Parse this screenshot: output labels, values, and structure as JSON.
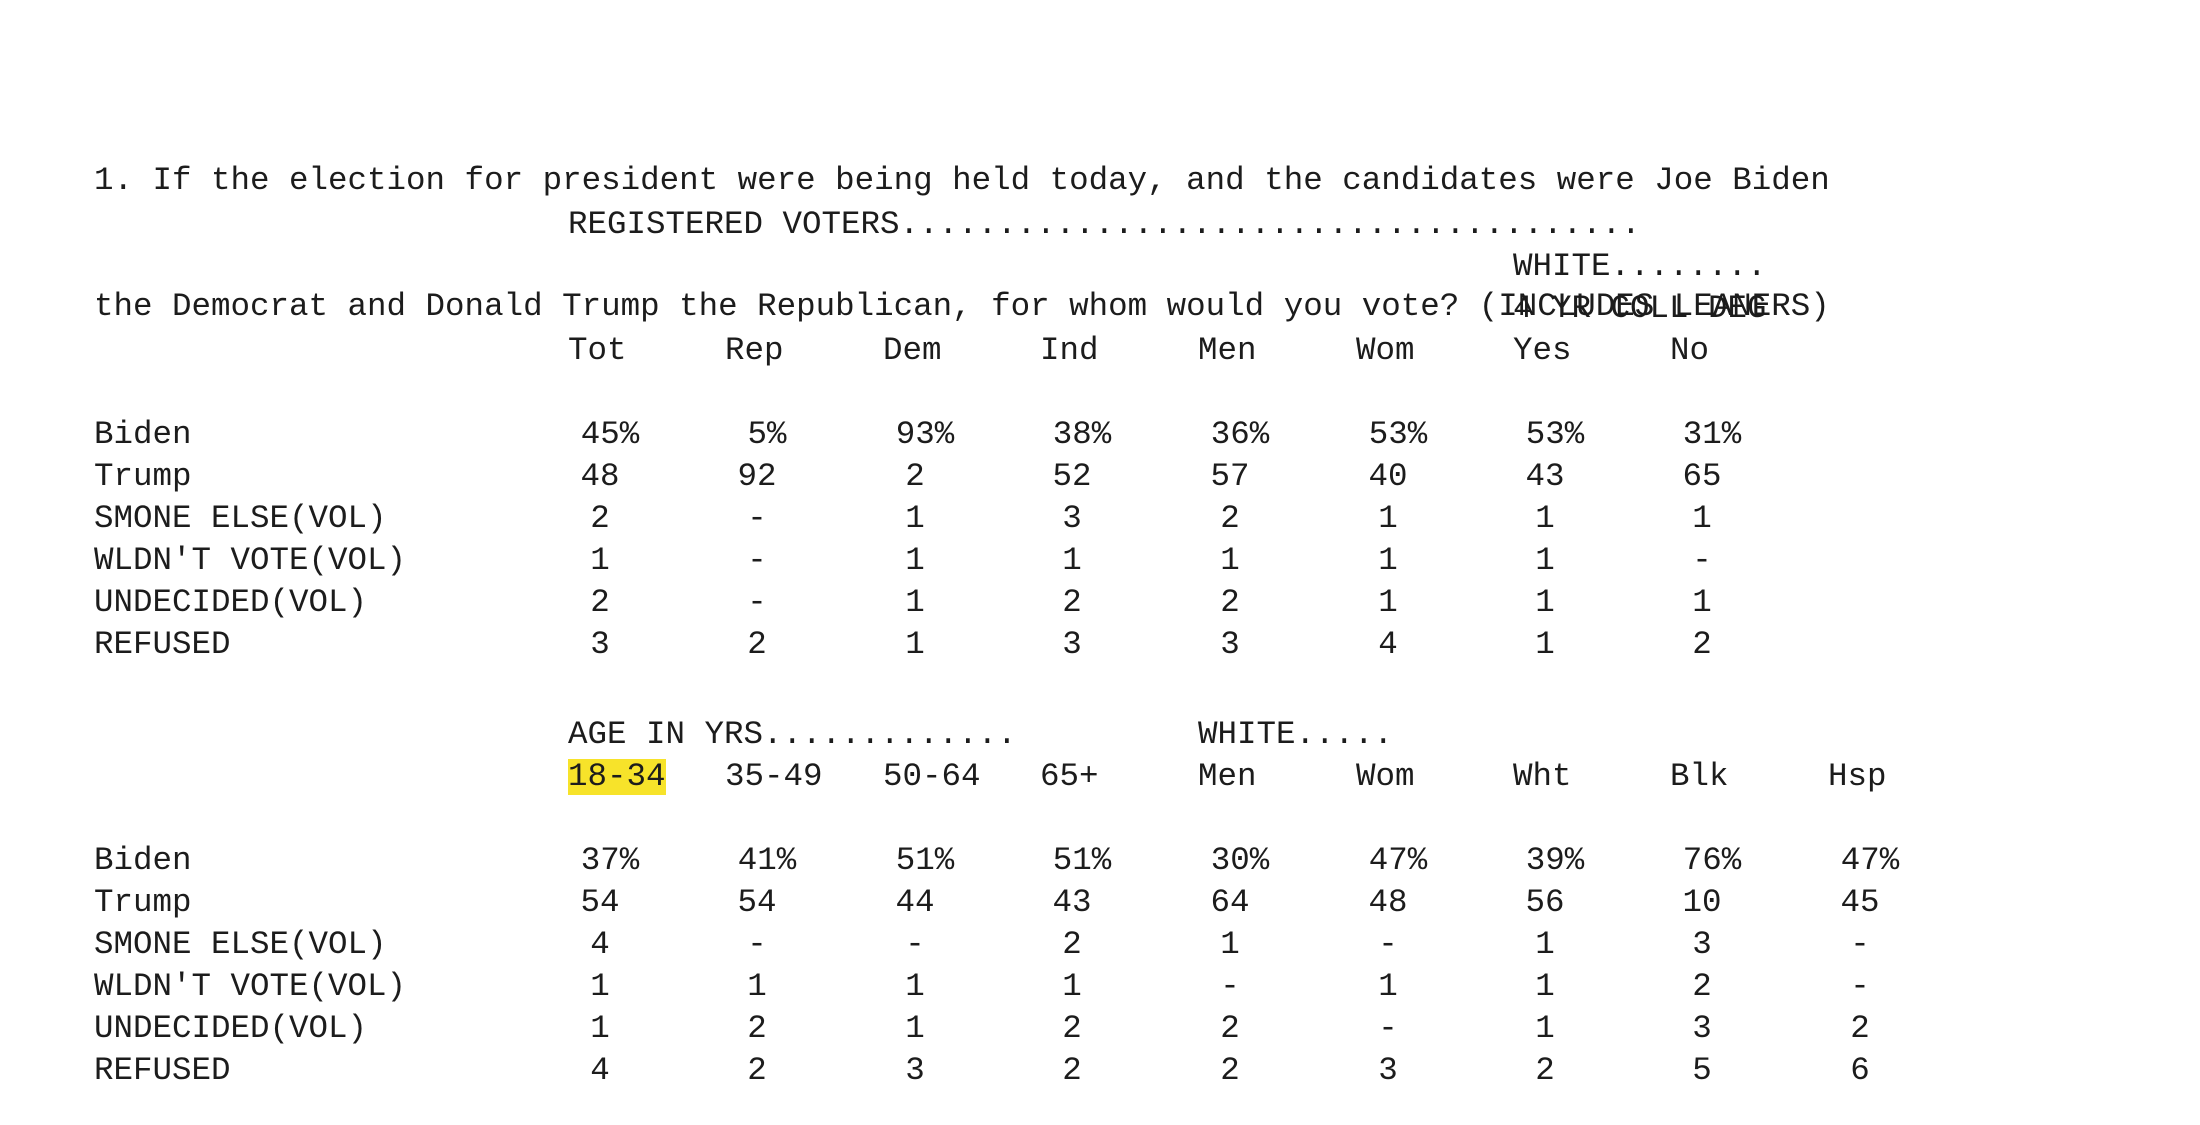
{
  "question": {
    "line1": "1. If the election for president were being held today, and the candidates were Joe Biden",
    "line2": "the Democrat and Donald Trump the Republican, for whom would you vote? (INCLUDES LEANERS)"
  },
  "table1": {
    "banner": "REGISTERED VOTERS......................................",
    "sub_banner_1": "WHITE........",
    "sub_banner_2": "4 YR COLL DEG",
    "columns": [
      "Tot",
      "Rep",
      "Dem",
      "Ind",
      "Men",
      "Wom",
      "Yes",
      "No"
    ],
    "rows": [
      {
        "label": "Biden",
        "values": [
          "45%",
          "5%",
          "93%",
          "38%",
          "36%",
          "53%",
          "53%",
          "31%"
        ]
      },
      {
        "label": "Trump",
        "values": [
          "48",
          "92",
          "2",
          "52",
          "57",
          "40",
          "43",
          "65"
        ]
      },
      {
        "label": "SMONE ELSE(VOL)",
        "values": [
          "2",
          "-",
          "1",
          "3",
          "2",
          "1",
          "1",
          "1"
        ]
      },
      {
        "label": "WLDN'T VOTE(VOL)",
        "values": [
          "1",
          "-",
          "1",
          "1",
          "1",
          "1",
          "1",
          "-"
        ]
      },
      {
        "label": "UNDECIDED(VOL)",
        "values": [
          "2",
          "-",
          "1",
          "2",
          "2",
          "1",
          "1",
          "1"
        ]
      },
      {
        "label": "REFUSED",
        "values": [
          "3",
          "2",
          "1",
          "3",
          "3",
          "4",
          "1",
          "2"
        ]
      }
    ]
  },
  "table2": {
    "banner_age": "AGE IN YRS.............",
    "banner_white": "WHITE.....",
    "columns": [
      "18-34",
      "35-49",
      "50-64",
      "65+",
      "Men",
      "Wom",
      "Wht",
      "Blk",
      "Hsp"
    ],
    "highlight_color": "#f7e32a",
    "rows": [
      {
        "label": "Biden",
        "values": [
          "37%",
          "41%",
          "51%",
          "51%",
          "30%",
          "47%",
          "39%",
          "76%",
          "47%"
        ]
      },
      {
        "label": "Trump",
        "values": [
          "54",
          "54",
          "44",
          "43",
          "64",
          "48",
          "56",
          "10",
          "45"
        ]
      },
      {
        "label": "SMONE ELSE(VOL)",
        "values": [
          "4",
          "-",
          "-",
          "2",
          "1",
          "-",
          "1",
          "3",
          "-"
        ]
      },
      {
        "label": "WLDN'T VOTE(VOL)",
        "values": [
          "1",
          "1",
          "1",
          "1",
          "-",
          "1",
          "1",
          "2",
          "-"
        ]
      },
      {
        "label": "UNDECIDED(VOL)",
        "values": [
          "1",
          "2",
          "1",
          "2",
          "2",
          "-",
          "1",
          "3",
          "2"
        ]
      },
      {
        "label": "REFUSED",
        "values": [
          "4",
          "2",
          "3",
          "2",
          "2",
          "3",
          "2",
          "5",
          "6"
        ]
      }
    ]
  }
}
